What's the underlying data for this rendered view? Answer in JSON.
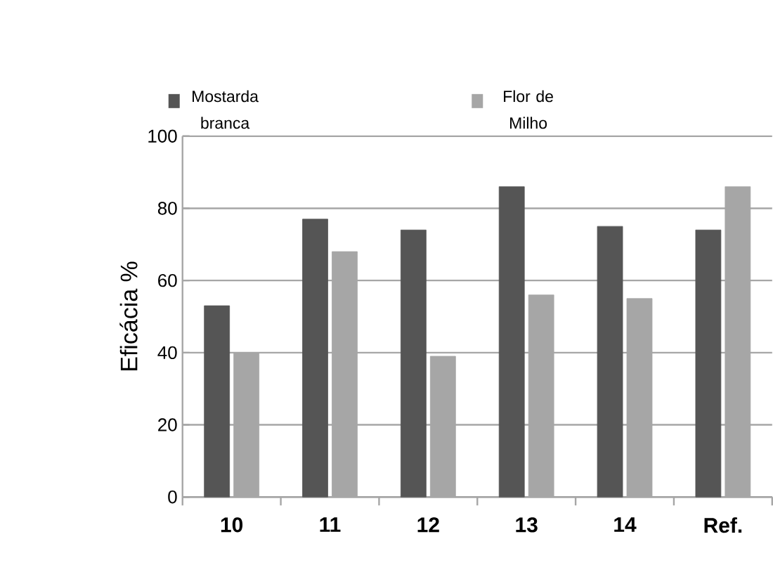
{
  "chart_data": {
    "type": "bar",
    "ylabel": "Eficácia %",
    "categories": [
      "10",
      "11",
      "12",
      "13",
      "14",
      "Ref."
    ],
    "series": [
      {
        "name": "Mostarda branca",
        "color": "#555555",
        "values": [
          53,
          77,
          74,
          86,
          75,
          74
        ]
      },
      {
        "name": "Flor de Milho",
        "color": "#a6a6a6",
        "values": [
          40,
          68,
          39,
          56,
          55,
          86
        ]
      }
    ],
    "ylim": [
      0,
      100
    ],
    "yticks": [
      0,
      20,
      40,
      60,
      80,
      100
    ],
    "grid": "y",
    "legend": "top"
  }
}
